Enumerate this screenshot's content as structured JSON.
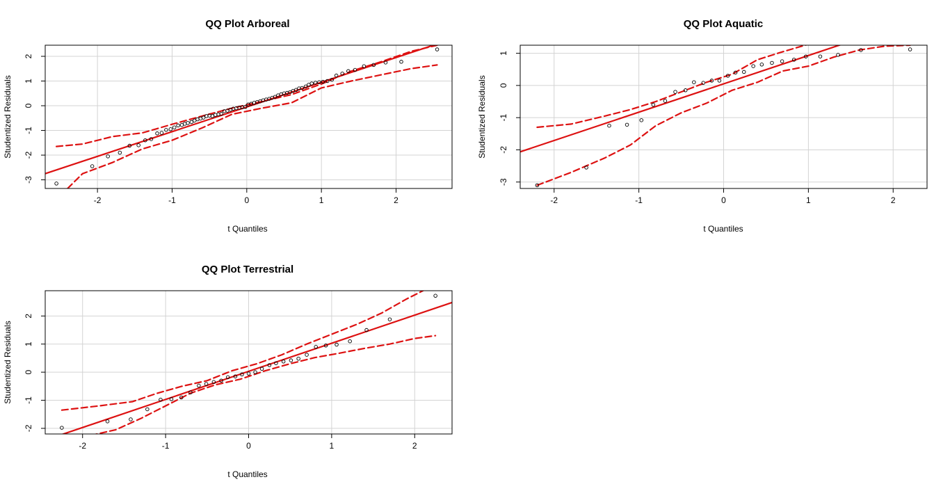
{
  "chart_data": [
    {
      "type": "scatter",
      "title": "QQ Plot Arboreal",
      "xlabel": "t Quantiles",
      "ylabel": "Studentized Residuals",
      "xlim": [
        -2.7,
        2.75
      ],
      "ylim": [
        -3.35,
        2.45
      ],
      "xticks": [
        -2,
        -1,
        0,
        1,
        2
      ],
      "yticks": [
        -3,
        -2,
        -1,
        0,
        1,
        2
      ],
      "grid": true,
      "colors": {
        "points": "#000000",
        "line": "#dd1111",
        "envelope": "#dd1111",
        "grid": "#d3d3d3"
      },
      "reference_line": {
        "intercept": -0.05,
        "slope": 1.0
      },
      "envelope_upper": {
        "x": [
          -2.55,
          -2.2,
          -1.8,
          -1.4,
          -1.0,
          -0.6,
          -0.2,
          0.2,
          0.6,
          1.0,
          1.4,
          1.8,
          2.2,
          2.55
        ],
        "y": [
          -1.65,
          -1.55,
          -1.25,
          -1.1,
          -0.75,
          -0.42,
          -0.1,
          0.17,
          0.45,
          0.88,
          1.4,
          1.78,
          2.2,
          2.45
        ]
      },
      "envelope_lower": {
        "x": [
          -2.4,
          -2.2,
          -1.8,
          -1.4,
          -1.0,
          -0.6,
          -0.2,
          0.2,
          0.6,
          1.0,
          1.4,
          1.8,
          2.2,
          2.55
        ],
        "y": [
          -3.35,
          -2.75,
          -2.3,
          -1.75,
          -1.4,
          -0.9,
          -0.35,
          -0.1,
          0.12,
          0.72,
          1.0,
          1.25,
          1.5,
          1.65
        ]
      },
      "points": {
        "x": [
          -2.55,
          -2.07,
          -1.86,
          -1.7,
          -1.57,
          -1.45,
          -1.36,
          -1.28,
          -1.2,
          -1.14,
          -1.08,
          -1.02,
          -0.97,
          -0.92,
          -0.87,
          -0.83,
          -0.79,
          -0.74,
          -0.7,
          -0.66,
          -0.62,
          -0.58,
          -0.54,
          -0.5,
          -0.46,
          -0.42,
          -0.38,
          -0.34,
          -0.3,
          -0.26,
          -0.22,
          -0.18,
          -0.14,
          -0.1,
          -0.06,
          -0.02,
          0.02,
          0.06,
          0.1,
          0.14,
          0.18,
          0.22,
          0.26,
          0.3,
          0.34,
          0.38,
          0.42,
          0.46,
          0.5,
          0.54,
          0.58,
          0.62,
          0.66,
          0.7,
          0.74,
          0.79,
          0.83,
          0.87,
          0.92,
          0.97,
          1.02,
          1.08,
          1.14,
          1.2,
          1.28,
          1.36,
          1.45,
          1.57,
          1.7,
          1.86,
          2.07,
          2.55
        ],
        "y": [
          -3.15,
          -2.45,
          -2.05,
          -1.9,
          -1.62,
          -1.6,
          -1.4,
          -1.35,
          -1.12,
          -1.1,
          -0.98,
          -0.95,
          -0.88,
          -0.8,
          -0.78,
          -0.73,
          -0.7,
          -0.66,
          -0.6,
          -0.55,
          -0.52,
          -0.48,
          -0.42,
          -0.4,
          -0.42,
          -0.37,
          -0.35,
          -0.33,
          -0.22,
          -0.2,
          -0.16,
          -0.12,
          -0.1,
          -0.08,
          -0.06,
          -0.05,
          0.05,
          0.08,
          0.12,
          0.15,
          0.18,
          0.22,
          0.25,
          0.28,
          0.32,
          0.36,
          0.42,
          0.46,
          0.5,
          0.52,
          0.55,
          0.6,
          0.64,
          0.7,
          0.72,
          0.78,
          0.85,
          0.9,
          0.93,
          0.95,
          0.97,
          1.0,
          1.05,
          1.22,
          1.3,
          1.4,
          1.45,
          1.6,
          1.65,
          1.75,
          1.78,
          2.28
        ]
      }
    },
    {
      "type": "scatter",
      "title": "QQ Plot Aquatic",
      "xlabel": "t Quantiles",
      "ylabel": "Studentized Residuals",
      "xlim": [
        -2.4,
        2.4
      ],
      "ylim": [
        -3.2,
        1.25
      ],
      "xticks": [
        -2,
        -1,
        0,
        1,
        2
      ],
      "yticks": [
        -3,
        -2,
        -1,
        0,
        1
      ],
      "grid": true,
      "colors": {
        "points": "#000000",
        "line": "#dd1111",
        "envelope": "#dd1111",
        "grid": "#d3d3d3"
      },
      "reference_line": {
        "intercept": 0.05,
        "slope": 0.88
      },
      "envelope_upper": {
        "x": [
          -2.2,
          -1.8,
          -1.4,
          -1.1,
          -0.8,
          -0.5,
          -0.2,
          0.1,
          0.4,
          0.7,
          1.0,
          1.3,
          1.6,
          1.9,
          2.2
        ],
        "y": [
          -1.3,
          -1.2,
          -0.95,
          -0.75,
          -0.5,
          -0.2,
          0.1,
          0.35,
          0.8,
          1.05,
          1.28,
          1.35,
          1.35,
          1.35,
          1.35
        ]
      },
      "envelope_lower": {
        "x": [
          -2.2,
          -1.8,
          -1.4,
          -1.1,
          -0.8,
          -0.5,
          -0.2,
          0.1,
          0.4,
          0.7,
          1.0,
          1.3,
          1.6,
          1.9,
          2.2
        ],
        "y": [
          -3.1,
          -2.7,
          -2.25,
          -1.85,
          -1.25,
          -0.85,
          -0.55,
          -0.15,
          0.1,
          0.45,
          0.6,
          0.88,
          1.1,
          1.22,
          1.25
        ]
      },
      "points": {
        "x": [
          -2.2,
          -1.62,
          -1.35,
          -1.14,
          -0.97,
          -0.83,
          -0.69,
          -0.57,
          -0.45,
          -0.35,
          -0.24,
          -0.14,
          -0.05,
          0.05,
          0.14,
          0.24,
          0.35,
          0.45,
          0.57,
          0.69,
          0.83,
          0.97,
          1.14,
          1.35,
          1.62,
          2.2
        ],
        "y": [
          -3.1,
          -2.55,
          -1.25,
          -1.22,
          -1.08,
          -0.6,
          -0.48,
          -0.2,
          -0.15,
          0.1,
          0.08,
          0.15,
          0.15,
          0.3,
          0.4,
          0.42,
          0.6,
          0.65,
          0.7,
          0.75,
          0.8,
          0.9,
          0.9,
          0.95,
          1.1,
          1.12
        ]
      }
    },
    {
      "type": "scatter",
      "title": "QQ Plot Terrestrial",
      "xlabel": "t Quantiles",
      "ylabel": "Studentized Residuals",
      "xlim": [
        -2.45,
        2.45
      ],
      "ylim": [
        -2.2,
        2.9
      ],
      "xticks": [
        -2,
        -1,
        0,
        1,
        2
      ],
      "yticks": [
        -2,
        -1,
        0,
        1,
        2
      ],
      "grid": true,
      "colors": {
        "points": "#000000",
        "line": "#dd1111",
        "envelope": "#dd1111",
        "grid": "#d3d3d3"
      },
      "reference_line": {
        "intercept": 0.03,
        "slope": 1.0
      },
      "envelope_upper": {
        "x": [
          -2.25,
          -1.8,
          -1.4,
          -1.1,
          -0.8,
          -0.5,
          -0.2,
          0.1,
          0.4,
          0.7,
          1.0,
          1.3,
          1.6,
          1.9,
          2.1
        ],
        "y": [
          -1.35,
          -1.2,
          -1.05,
          -0.75,
          -0.5,
          -0.3,
          0.05,
          0.3,
          0.62,
          1.0,
          1.35,
          1.7,
          2.1,
          2.6,
          2.9
        ]
      },
      "envelope_lower": {
        "x": [
          -1.9,
          -1.6,
          -1.3,
          -1.0,
          -0.7,
          -0.4,
          -0.1,
          0.2,
          0.5,
          0.8,
          1.1,
          1.4,
          1.7,
          2.0,
          2.25
        ],
        "y": [
          -2.25,
          -2.05,
          -1.65,
          -1.2,
          -0.75,
          -0.45,
          -0.25,
          0.05,
          0.3,
          0.52,
          0.68,
          0.85,
          1.0,
          1.2,
          1.3
        ]
      },
      "points": {
        "x": [
          -2.25,
          -1.7,
          -1.42,
          -1.22,
          -1.06,
          -0.93,
          -0.81,
          -0.7,
          -0.6,
          -0.51,
          -0.42,
          -0.33,
          -0.25,
          -0.16,
          -0.08,
          0.0,
          0.08,
          0.16,
          0.25,
          0.33,
          0.42,
          0.51,
          0.6,
          0.7,
          0.81,
          0.93,
          1.06,
          1.22,
          1.42,
          1.7,
          2.25
        ],
        "y": [
          -1.98,
          -1.75,
          -1.68,
          -1.32,
          -0.98,
          -0.96,
          -0.9,
          -0.72,
          -0.48,
          -0.42,
          -0.35,
          -0.3,
          -0.18,
          -0.15,
          -0.08,
          -0.05,
          0.0,
          0.12,
          0.25,
          0.32,
          0.38,
          0.42,
          0.48,
          0.62,
          0.9,
          0.95,
          0.98,
          1.1,
          1.5,
          1.88,
          2.72
        ]
      }
    }
  ]
}
